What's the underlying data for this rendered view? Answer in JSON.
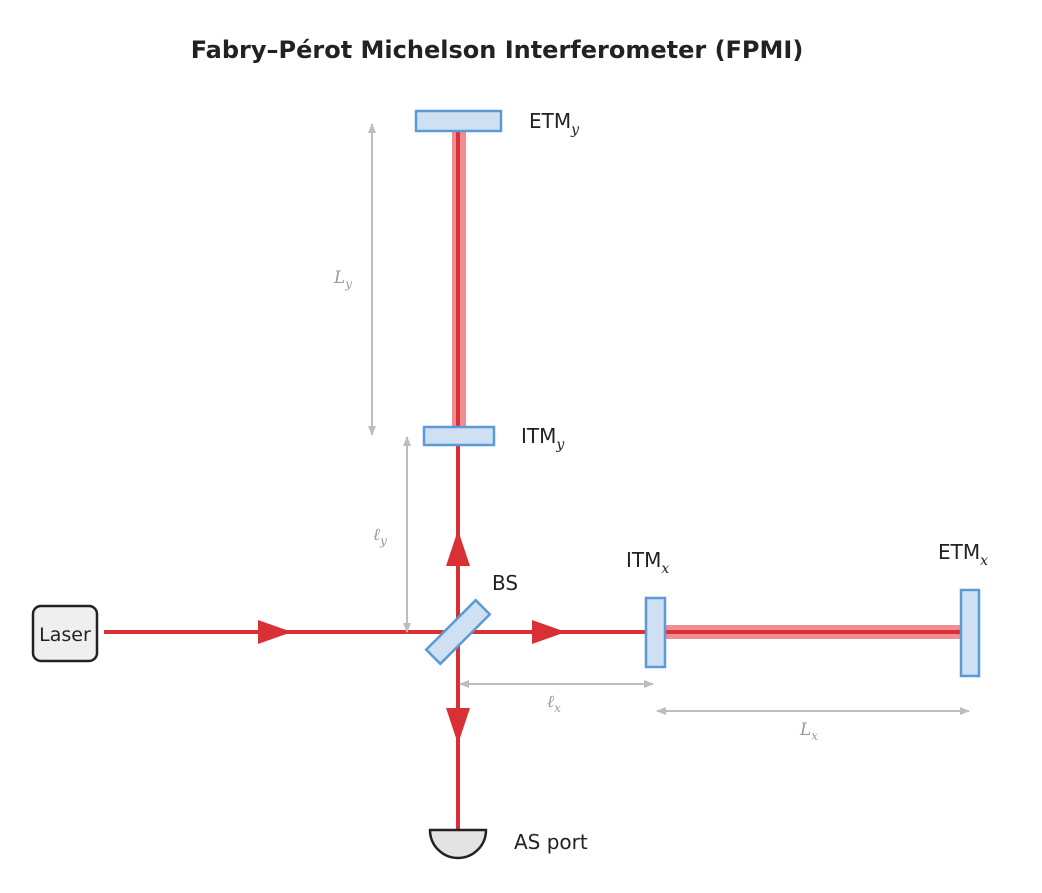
{
  "title": "Fabry–Pérot Michelson Interferometer (FPMI)",
  "components": {
    "laser": "Laser",
    "beam_splitter": "BS",
    "itm_x": {
      "base": "ITM",
      "sub": "x"
    },
    "etm_x": {
      "base": "ETM",
      "sub": "x"
    },
    "itm_y": {
      "base": "ITM",
      "sub": "y"
    },
    "etm_y": {
      "base": "ETM",
      "sub": "y"
    },
    "as_port": "AS port"
  },
  "dimensions": {
    "L_y": {
      "base": "L",
      "sub": "y"
    },
    "l_y": {
      "base": "ℓ",
      "sub": "y"
    },
    "l_x": {
      "base": "ℓ",
      "sub": "x"
    },
    "L_x": {
      "base": "L",
      "sub": "x"
    }
  },
  "colors": {
    "beam": "#d93035",
    "cavity_beam": "#ef8d92",
    "mirror_fill": "#cfe0f3",
    "mirror_stroke": "#5b9bd5",
    "dimension": "#bdbdbd",
    "detector_fill": "#e3e3e3",
    "laser_fill": "#efefef"
  }
}
